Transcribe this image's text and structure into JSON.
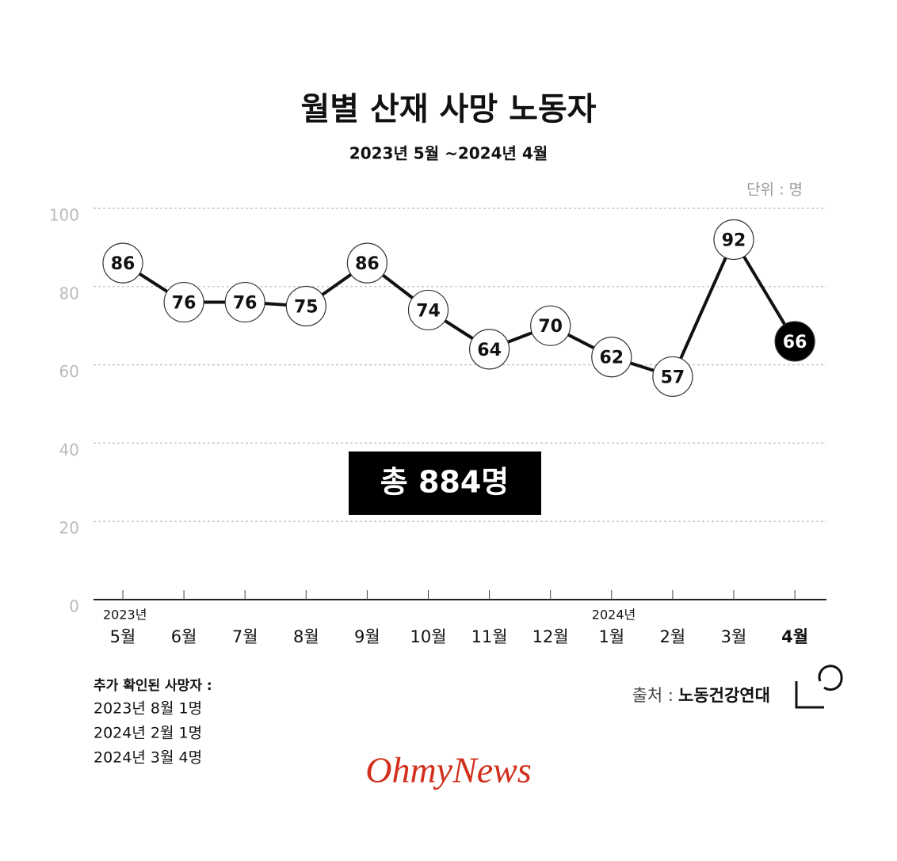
{
  "chart_data": {
    "type": "line",
    "title": "월별 산재 사망 노동자",
    "subtitle": "2023년 5월 ~2024년 4월",
    "unit": "단위 : 명",
    "categories": [
      "5월",
      "6월",
      "7월",
      "8월",
      "9월",
      "10월",
      "11월",
      "12월",
      "1월",
      "2월",
      "3월",
      "4월"
    ],
    "year_labels": [
      "2023년",
      null,
      null,
      null,
      null,
      null,
      null,
      null,
      "2024년",
      null,
      null,
      null
    ],
    "series": [
      {
        "name": "산재 사망 노동자",
        "color": "#111111",
        "marker_fill": "#ffffff",
        "values": [
          86,
          76,
          76,
          75,
          86,
          74,
          64,
          70,
          62,
          57,
          92,
          66
        ]
      }
    ],
    "highlight_category": "4월",
    "highlight_fill": "#000000",
    "ylim": [
      0,
      100
    ],
    "yticks": [
      0,
      20,
      40,
      60,
      80,
      100
    ],
    "grid": true,
    "annotation": "총 884명",
    "notes": {
      "title": "추가 확인된 사망자 :",
      "lines": [
        "2023년 8월 1명",
        "2024년 2월 1명",
        "2024년 3월 4명"
      ]
    },
    "source": {
      "label": "출처 :",
      "name": "노동건강연대"
    },
    "logo": "OhmyNews"
  }
}
